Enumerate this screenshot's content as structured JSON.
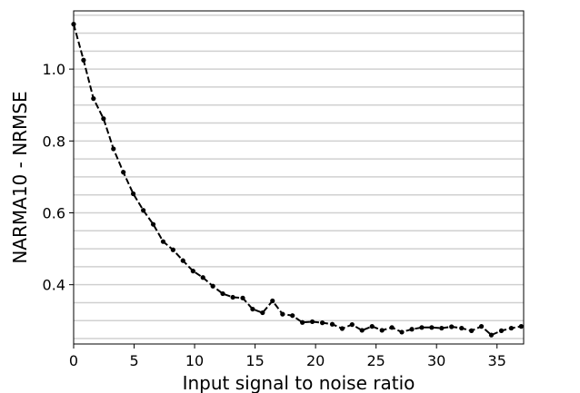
{
  "chart_data": {
    "type": "line",
    "title": "",
    "xlabel": "Input signal to noise ratio",
    "ylabel": "NARMA10 - NRMSE",
    "xlim": [
      0,
      37.2
    ],
    "ylim": [
      0.235,
      1.162
    ],
    "xticks": [
      0,
      5,
      10,
      15,
      20,
      25,
      30,
      35
    ],
    "xtick_labels": [
      "0",
      "5",
      "10",
      "15",
      "20",
      "25",
      "30",
      "35"
    ],
    "yticks": [
      0.4,
      0.6,
      0.8,
      1.0
    ],
    "ytick_labels": [
      "0.4",
      "0.6",
      "0.8",
      "1.0"
    ],
    "ygrid_minor_step": 0.05,
    "grid": "horizontal",
    "line_style": "dashed",
    "line_color": "#000000",
    "marker": "circle",
    "series": [
      {
        "x": [
          0,
          0.82,
          1.64,
          2.47,
          3.29,
          4.11,
          4.93,
          5.76,
          6.58,
          7.4,
          8.22,
          9.04,
          9.87,
          10.69,
          11.51,
          12.33,
          13.16,
          13.98,
          14.8,
          15.62,
          16.44,
          17.27,
          18.09,
          18.91,
          19.73,
          20.56,
          21.38,
          22.2,
          23.02,
          23.84,
          24.67,
          25.49,
          26.31,
          27.13,
          27.96,
          28.78,
          29.6,
          30.42,
          31.24,
          32.07,
          32.89,
          33.71,
          34.53,
          35.36,
          36.18,
          37.0
        ],
        "y": [
          1.125,
          1.025,
          0.918,
          0.862,
          0.778,
          0.713,
          0.653,
          0.607,
          0.568,
          0.52,
          0.497,
          0.467,
          0.438,
          0.42,
          0.396,
          0.375,
          0.365,
          0.363,
          0.332,
          0.322,
          0.355,
          0.318,
          0.314,
          0.295,
          0.297,
          0.294,
          0.29,
          0.278,
          0.289,
          0.273,
          0.284,
          0.273,
          0.281,
          0.268,
          0.276,
          0.281,
          0.281,
          0.279,
          0.283,
          0.279,
          0.272,
          0.284,
          0.26,
          0.272,
          0.279,
          0.284
        ]
      }
    ]
  }
}
